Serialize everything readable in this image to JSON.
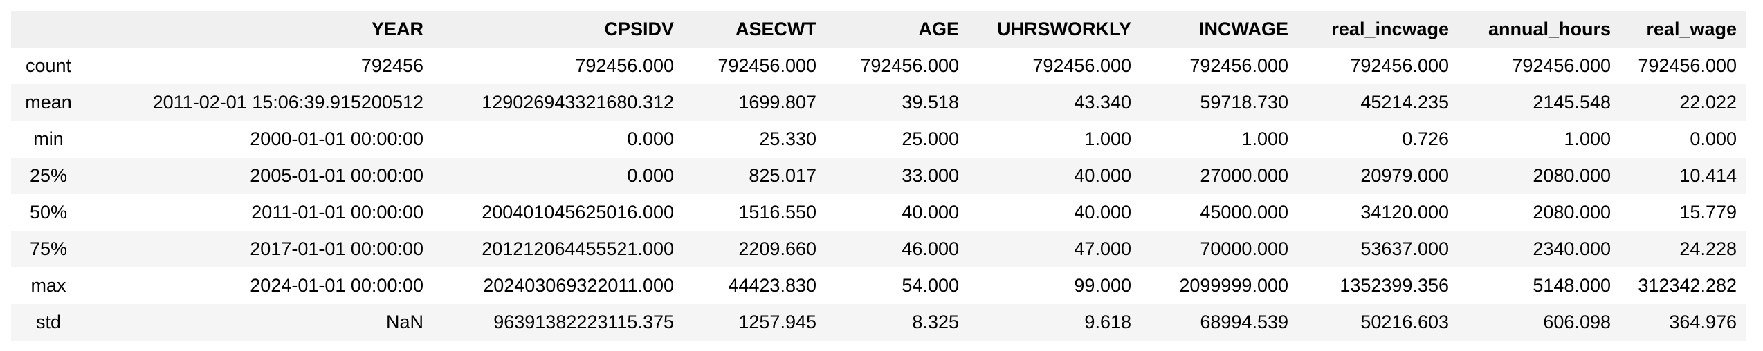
{
  "table": {
    "columns": [
      "",
      "YEAR",
      "CPSIDV",
      "ASECWT",
      "AGE",
      "UHRSWORKLY",
      "INCWAGE",
      "real_incwage",
      "annual_hours",
      "real_wage"
    ],
    "rows": [
      {
        "label": "count",
        "values": [
          "792456",
          "792456.000",
          "792456.000",
          "792456.000",
          "792456.000",
          "792456.000",
          "792456.000",
          "792456.000",
          "792456.000"
        ]
      },
      {
        "label": "mean",
        "values": [
          "2011-02-01 15:06:39.915200512",
          "129026943321680.312",
          "1699.807",
          "39.518",
          "43.340",
          "59718.730",
          "45214.235",
          "2145.548",
          "22.022"
        ]
      },
      {
        "label": "min",
        "values": [
          "2000-01-01 00:00:00",
          "0.000",
          "25.330",
          "25.000",
          "1.000",
          "1.000",
          "0.726",
          "1.000",
          "0.000"
        ]
      },
      {
        "label": "25%",
        "values": [
          "2005-01-01 00:00:00",
          "0.000",
          "825.017",
          "33.000",
          "40.000",
          "27000.000",
          "20979.000",
          "2080.000",
          "10.414"
        ]
      },
      {
        "label": "50%",
        "values": [
          "2011-01-01 00:00:00",
          "200401045625016.000",
          "1516.550",
          "40.000",
          "40.000",
          "45000.000",
          "34120.000",
          "2080.000",
          "15.779"
        ]
      },
      {
        "label": "75%",
        "values": [
          "2017-01-01 00:00:00",
          "201212064455521.000",
          "2209.660",
          "46.000",
          "47.000",
          "70000.000",
          "53637.000",
          "2340.000",
          "24.228"
        ]
      },
      {
        "label": "max",
        "values": [
          "2024-01-01 00:00:00",
          "202403069322011.000",
          "44423.830",
          "54.000",
          "99.000",
          "2099999.000",
          "1352399.356",
          "5148.000",
          "312342.282"
        ]
      },
      {
        "label": "std",
        "values": [
          "NaN",
          "96391382223115.375",
          "1257.945",
          "8.325",
          "9.618",
          "68994.539",
          "50216.603",
          "606.098",
          "364.976"
        ]
      }
    ]
  }
}
